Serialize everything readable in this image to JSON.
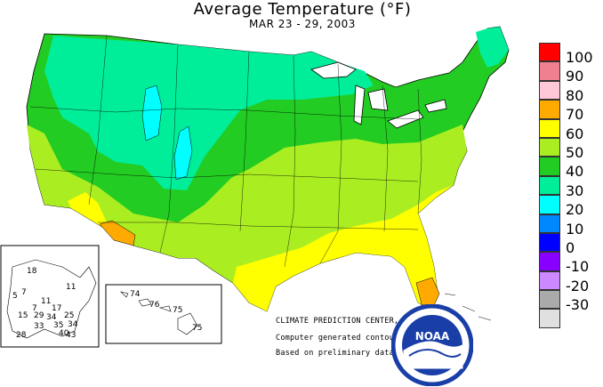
{
  "map": {
    "title": "Average Temperature (°F)",
    "subtitle": "MAR 23 - 29, 2003",
    "credits": {
      "center": "CLIMATE PREDICTION CENTER, NOAA",
      "line1": "Computer generated contours",
      "line2": "Based on preliminary data"
    },
    "logo_text": "NOAA",
    "legend": [
      {
        "label": "100",
        "color": "#ff0000"
      },
      {
        "label": "90",
        "color": "#f08090"
      },
      {
        "label": "80",
        "color": "#ffc8d8"
      },
      {
        "label": "70",
        "color": "#ffaa00"
      },
      {
        "label": "60",
        "color": "#ffff00"
      },
      {
        "label": "50",
        "color": "#aaee22"
      },
      {
        "label": "40",
        "color": "#22cc22"
      },
      {
        "label": "30",
        "color": "#00ee99"
      },
      {
        "label": "20",
        "color": "#00ffff"
      },
      {
        "label": "10",
        "color": "#0088ff"
      },
      {
        "label": "0",
        "color": "#0000ff"
      },
      {
        "label": "-10",
        "color": "#8800ff"
      },
      {
        "label": "-20",
        "color": "#cc88ff"
      },
      {
        "label": "-30",
        "color": "#aaaaaa"
      },
      {
        "label": "",
        "color": "#e0e0e0"
      }
    ],
    "alaska_values": [
      "18",
      "11",
      "7",
      "5",
      "11",
      "15",
      "17",
      "7",
      "29",
      "34",
      "25",
      "35",
      "33",
      "28",
      "34",
      "40",
      "43"
    ],
    "hawaii_values": [
      "74",
      "76",
      "75",
      "75"
    ]
  }
}
